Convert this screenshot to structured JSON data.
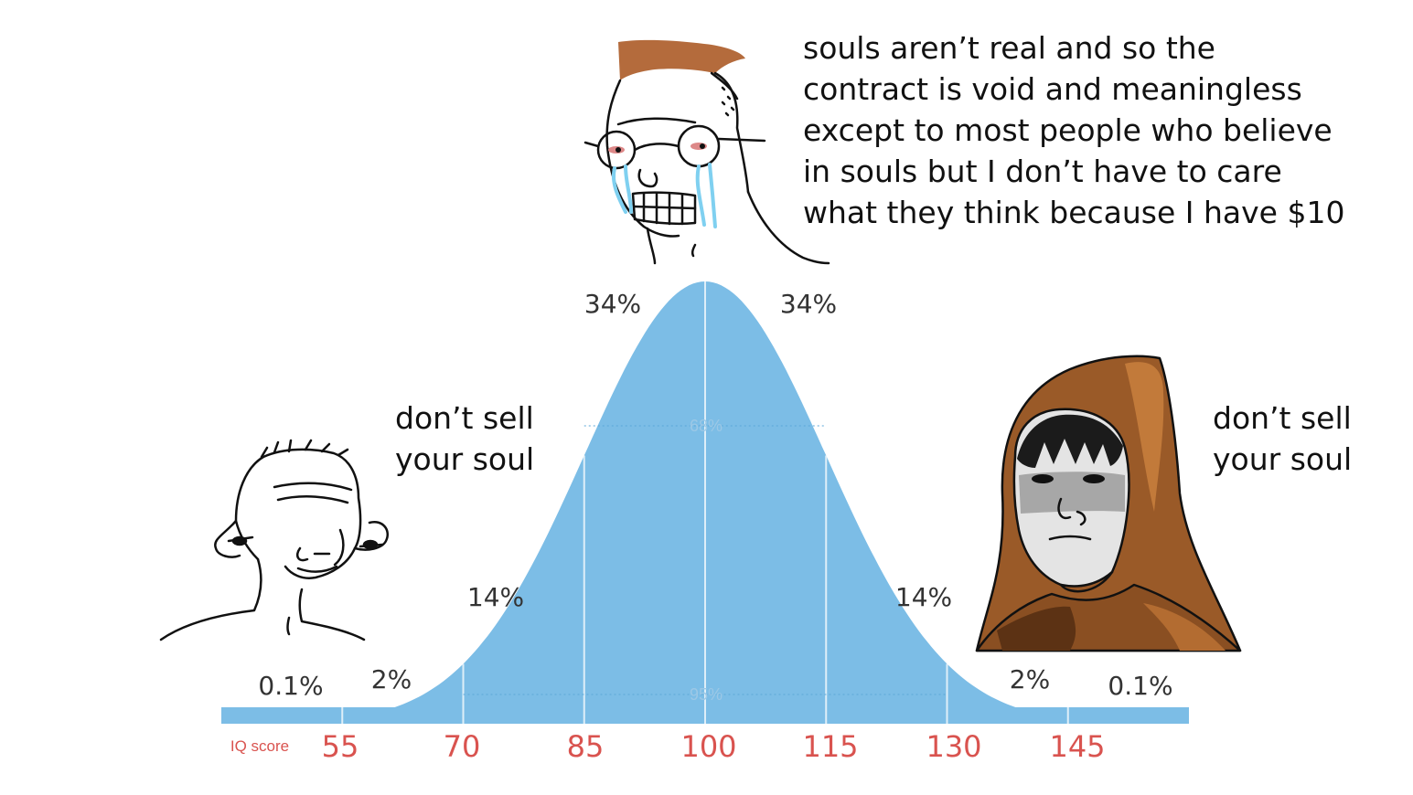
{
  "meme": {
    "caption_left": "don’t sell\nyour soul",
    "caption_middle": "souls aren’t real and so the\ncontract is void and meaningless\nexcept to most people who believe\nin souls but I don’t have to care\nwhat they think because I have $10",
    "caption_right": "don’t sell\nyour soul",
    "characters": [
      "simple-wojak",
      "crying-glasses-wojak",
      "hooded-monk"
    ]
  },
  "chart": {
    "axis_label": "IQ score",
    "ticks": [
      "55",
      "70",
      "85",
      "100",
      "115",
      "130",
      "145"
    ],
    "band_labels": [
      "0.1%",
      "2%",
      "14%",
      "34%",
      "34%",
      "14%",
      "2%",
      "0.1%"
    ],
    "inner_labels": [
      "68%",
      "95%"
    ],
    "curve_color": "#7cbde6",
    "tick_color": "#d9534f"
  },
  "chart_data": {
    "type": "area",
    "x": [
      40,
      45,
      50,
      55,
      60,
      65,
      70,
      75,
      80,
      85,
      90,
      95,
      100,
      105,
      110,
      115,
      120,
      125,
      130,
      135,
      140,
      145,
      150,
      155,
      160
    ],
    "mean": 100,
    "sd": 15,
    "xlim": [
      40,
      160
    ],
    "xlabel": "IQ score",
    "tick_values": [
      55,
      70,
      85,
      100,
      115,
      130,
      145
    ],
    "bands": [
      {
        "range": [
          40,
          55
        ],
        "label": "0.1%"
      },
      {
        "range": [
          55,
          70
        ],
        "label": "2%"
      },
      {
        "range": [
          70,
          85
        ],
        "label": "14%"
      },
      {
        "range": [
          85,
          100
        ],
        "label": "34%"
      },
      {
        "range": [
          100,
          115
        ],
        "label": "34%"
      },
      {
        "range": [
          115,
          130
        ],
        "label": "14%"
      },
      {
        "range": [
          130,
          145
        ],
        "label": "2%"
      },
      {
        "range": [
          145,
          160
        ],
        "label": "0.1%"
      }
    ],
    "spans": [
      {
        "range": [
          85,
          115
        ],
        "label": "68%"
      },
      {
        "range": [
          70,
          130
        ],
        "label": "95%"
      }
    ]
  }
}
